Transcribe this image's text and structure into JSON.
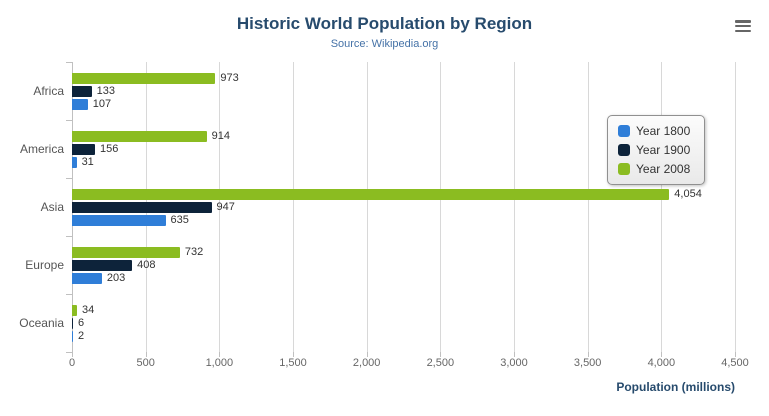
{
  "header": {
    "title": "Historic World Population by Region",
    "subtitle": "Source: Wikipedia.org"
  },
  "chart_data": {
    "type": "bar",
    "orientation": "horizontal",
    "categories": [
      "Africa",
      "America",
      "Asia",
      "Europe",
      "Oceania"
    ],
    "series": [
      {
        "name": "Year 1800",
        "color": "#2f7ed8",
        "values": [
          107,
          31,
          635,
          203,
          2
        ]
      },
      {
        "name": "Year 1900",
        "color": "#0d233a",
        "values": [
          133,
          156,
          947,
          408,
          6
        ]
      },
      {
        "name": "Year 2008",
        "color": "#8bbc21",
        "values": [
          973,
          914,
          4054,
          732,
          34
        ]
      }
    ],
    "visual_series_order_top_to_bottom": [
      "Year 2008",
      "Year 1900",
      "Year 1800"
    ],
    "title": "Historic World Population by Region",
    "subtitle": "Source: Wikipedia.org",
    "xlabel": "Population (millions)",
    "ylabel": "",
    "xlim": [
      0,
      4500
    ],
    "tick_step": 500,
    "grid": true,
    "legend_position": "right-floating",
    "data_labels": true
  },
  "icons": {
    "export_menu": "hamburger-icon"
  },
  "colors": {
    "title": "#274b6d",
    "subtitle": "#4572a7",
    "axis_title": "#274b6d",
    "gridline": "#d8d8d8",
    "tick_label": "#666666",
    "category_label": "#555555",
    "data_label": "#333333"
  }
}
